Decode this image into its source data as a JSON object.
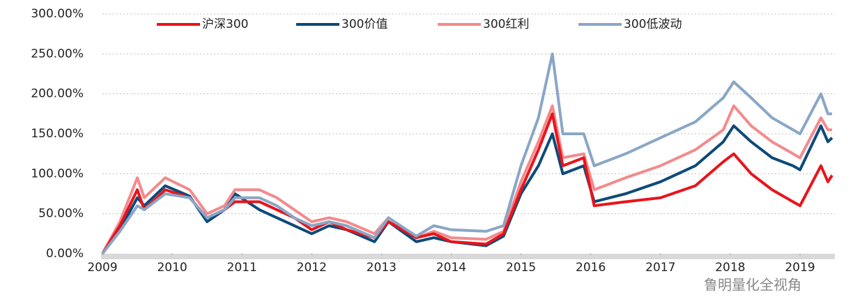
{
  "chart_data": {
    "type": "line",
    "x": [
      2009.0,
      2009.25,
      2009.5,
      2009.6,
      2009.9,
      2010.25,
      2010.5,
      2010.75,
      2010.9,
      2011.25,
      2011.5,
      2011.75,
      2012.0,
      2012.25,
      2012.5,
      2012.9,
      2013.1,
      2013.5,
      2013.75,
      2014.0,
      2014.5,
      2014.75,
      2015.0,
      2015.25,
      2015.45,
      2015.6,
      2015.9,
      2016.05,
      2016.5,
      2017.0,
      2017.5,
      2017.9,
      2018.05,
      2018.3,
      2018.6,
      2018.9,
      2019.0,
      2019.3,
      2019.4,
      2019.46
    ],
    "series": [
      {
        "name": "沪深300",
        "color": "#e8141b",
        "values": [
          0,
          35,
          80,
          55,
          80,
          70,
          45,
          55,
          65,
          65,
          55,
          45,
          30,
          40,
          30,
          20,
          40,
          20,
          25,
          15,
          12,
          25,
          80,
          130,
          175,
          110,
          120,
          60,
          65,
          70,
          85,
          115,
          125,
          100,
          80,
          65,
          60,
          110,
          90,
          98
        ]
      },
      {
        "name": "300价值",
        "color": "#0d4a78",
        "values": [
          0,
          30,
          70,
          60,
          85,
          72,
          40,
          55,
          75,
          55,
          45,
          35,
          25,
          35,
          30,
          15,
          40,
          15,
          20,
          15,
          10,
          22,
          75,
          110,
          150,
          100,
          110,
          65,
          75,
          90,
          110,
          140,
          160,
          140,
          120,
          110,
          105,
          160,
          140,
          145
        ]
      },
      {
        "name": "300红利",
        "color": "#f38a8c",
        "values": [
          0,
          40,
          95,
          70,
          95,
          80,
          50,
          60,
          80,
          80,
          70,
          55,
          40,
          45,
          40,
          25,
          45,
          20,
          28,
          20,
          18,
          28,
          90,
          140,
          185,
          120,
          125,
          80,
          95,
          110,
          130,
          155,
          185,
          160,
          140,
          125,
          120,
          170,
          155,
          155
        ]
      },
      {
        "name": "300低波动",
        "color": "#8aa6c6",
        "values": [
          0,
          28,
          60,
          55,
          75,
          70,
          45,
          55,
          70,
          70,
          60,
          45,
          35,
          40,
          35,
          20,
          45,
          22,
          35,
          30,
          28,
          35,
          110,
          170,
          250,
          150,
          150,
          110,
          125,
          145,
          165,
          195,
          215,
          195,
          170,
          155,
          150,
          200,
          175,
          175
        ]
      }
    ],
    "xlim": [
      2009,
      2019.5
    ],
    "xticks": [
      2009,
      2010,
      2011,
      2012,
      2013,
      2014,
      2015,
      2016,
      2017,
      2018,
      2019
    ],
    "ylim": [
      0,
      300
    ],
    "yticks": [
      {
        "value": 0,
        "label": "0.00%"
      },
      {
        "value": 50,
        "label": "50.00%"
      },
      {
        "value": 100,
        "label": "100.00%"
      },
      {
        "value": 150,
        "label": "150.00%"
      },
      {
        "value": 200,
        "label": "200.00%"
      },
      {
        "value": 250,
        "label": "250.00%"
      },
      {
        "value": 300,
        "label": "300.00%"
      }
    ],
    "grid": true,
    "legend": "top",
    "watermark": "鲁明量化全视角"
  }
}
